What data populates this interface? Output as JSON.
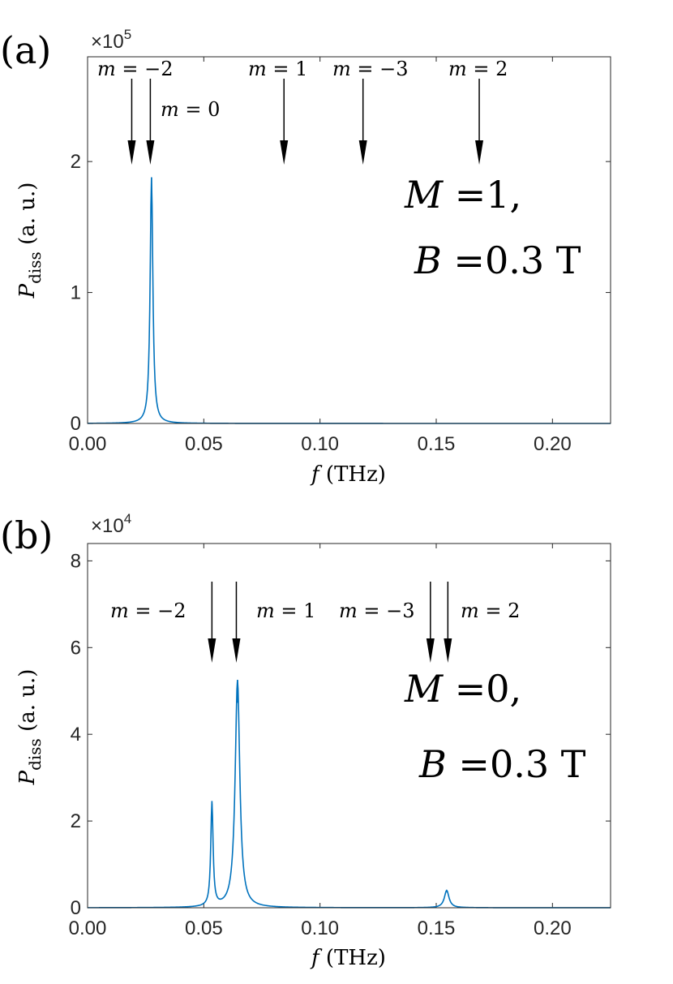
{
  "chart_data": [
    {
      "type": "line",
      "panel_label": "(a)",
      "xlabel": "f (THz)",
      "ylabel": "P_diss (a. u.)",
      "xlim": [
        0,
        0.225
      ],
      "ylim": [
        0,
        280000
      ],
      "y_multiplier": "×10^5",
      "x_ticks": [
        0,
        0.05,
        0.1,
        0.15,
        0.2
      ],
      "x_tick_labels": [
        "0.00",
        "0.05",
        "0.10",
        "0.15",
        "0.20"
      ],
      "y_ticks": [
        0,
        100000,
        200000
      ],
      "y_tick_labels": [
        "0",
        "1",
        "2"
      ],
      "grid": false,
      "line_color": "#0072BD",
      "peaks": [
        {
          "x": 0.0275,
          "height": 188000,
          "hwhm": 0.0007
        }
      ],
      "annotations": [
        {
          "text": "m = −2",
          "x": 0.019
        },
        {
          "text": "m = 0",
          "x": 0.027
        },
        {
          "text": "m = 1",
          "x": 0.0845
        },
        {
          "text": "m = −3",
          "x": 0.1185
        },
        {
          "text": "m = 2",
          "x": 0.1685
        }
      ],
      "parameters": {
        "line1": "M =1,",
        "line2": "B =0.3 T"
      }
    },
    {
      "type": "line",
      "panel_label": "(b)",
      "xlabel": "f (THz)",
      "ylabel": "P_diss (a. u.)",
      "xlim": [
        0,
        0.225
      ],
      "ylim": [
        0,
        84000
      ],
      "y_multiplier": "×10^4",
      "x_ticks": [
        0,
        0.05,
        0.1,
        0.15,
        0.2
      ],
      "x_tick_labels": [
        "0.00",
        "0.05",
        "0.10",
        "0.15",
        "0.20"
      ],
      "y_ticks": [
        0,
        20000,
        40000,
        60000,
        80000
      ],
      "y_tick_labels": [
        "0",
        "2",
        "4",
        "6",
        "8"
      ],
      "grid": false,
      "line_color": "#0072BD",
      "peaks": [
        {
          "x": 0.0535,
          "height": 24000,
          "hwhm": 0.0006
        },
        {
          "x": 0.0645,
          "height": 52500,
          "hwhm": 0.0012
        },
        {
          "x": 0.1545,
          "height": 4000,
          "hwhm": 0.0012
        }
      ],
      "annotations": [
        {
          "text": "m = −2",
          "x": 0.0535
        },
        {
          "text": "m = 1",
          "x": 0.064
        },
        {
          "text": "m = −3",
          "x": 0.1475
        },
        {
          "text": "m = 2",
          "x": 0.155
        }
      ],
      "parameters": {
        "line1": "M =0,",
        "line2": "B =0.3 T"
      }
    }
  ]
}
